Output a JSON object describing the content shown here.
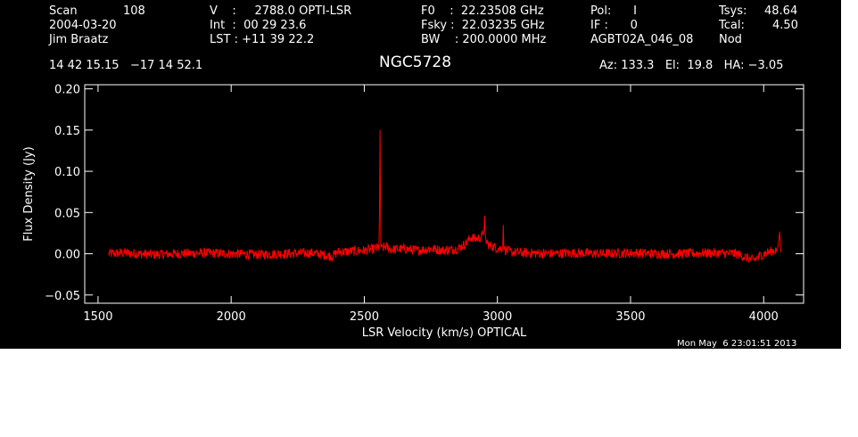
{
  "header": {
    "scan_label": "Scan",
    "scan_value": "108",
    "date": "2004-03-20",
    "observer": "Jim Braatz",
    "v_line": "V    :     2788.0 OPTI-LSR",
    "int_line": "Int  :  00 29 23.6",
    "lst_line": "LST : +11 39 22.2",
    "f0_line": "F0    :  22.23508 GHz",
    "fsky_line": "Fsky :  22.03235 GHz",
    "bw_line": "BW    : 200.0000 MHz",
    "pol_line": "Pol:      I",
    "if_line": "IF :      0",
    "project": "AGBT02A_046_08",
    "tsys_label": "Tsys:",
    "tsys_value": "48.64",
    "tcal_label": "Tcal:",
    "tcal_value": "4.50",
    "mode": "Nod",
    "coords": "14 42 15.15   −17 14 52.1",
    "source": "NGC5728",
    "az_el_ha": "Az: 133.3   El:  19.8   HA: −3.05"
  },
  "timestamp": "Mon May  6 23:01:51 2013",
  "colors": {
    "background": "#000000",
    "axes": "#ffffff",
    "trace": "#ff0000"
  },
  "chart_data": {
    "type": "line",
    "title": "NGC5728",
    "xlabel": "LSR Velocity (km/s) OPTICAL",
    "ylabel": "Flux Density (Jy)",
    "xlim": [
      1450,
      4150
    ],
    "ylim": [
      -0.06,
      0.205
    ],
    "x_ticks": [
      1500,
      2000,
      2500,
      3000,
      3500,
      4000
    ],
    "x_tick_labels": [
      "1500",
      "2000",
      "2500",
      "3000",
      "3500",
      "4000"
    ],
    "y_ticks": [
      -0.05,
      0.0,
      0.05,
      0.1,
      0.15,
      0.2
    ],
    "y_tick_labels": [
      "−0.05",
      "0.00",
      "0.05",
      "0.10",
      "0.15",
      "0.20"
    ],
    "grid": false,
    "series": [
      {
        "x": [
          1540,
          1600,
          1700,
          1800,
          1900,
          2000,
          2100,
          2200,
          2300,
          2380,
          2400,
          2450,
          2500,
          2540,
          2555,
          2557,
          2559,
          2562,
          2565,
          2580,
          2600,
          2650,
          2700,
          2750,
          2800,
          2850,
          2880,
          2900,
          2920,
          2940,
          2950,
          2952,
          2954,
          2958,
          2970,
          2990,
          3010,
          3020,
          3022,
          3024,
          3028,
          3050,
          3100,
          3200,
          3300,
          3400,
          3500,
          3600,
          3700,
          3800,
          3900,
          3960,
          4000,
          4030,
          4050,
          4055,
          4060,
          4065
        ],
        "values": [
          0.0,
          0.001,
          -0.001,
          0.0,
          0.001,
          0.0,
          -0.001,
          0.0,
          0.001,
          -0.003,
          0.002,
          0.003,
          0.004,
          0.006,
          0.008,
          0.052,
          0.15,
          0.01,
          0.006,
          0.009,
          0.005,
          0.006,
          0.004,
          0.006,
          0.004,
          0.006,
          0.012,
          0.02,
          0.018,
          0.02,
          0.03,
          0.046,
          0.025,
          0.015,
          0.01,
          0.008,
          0.006,
          0.008,
          0.035,
          0.006,
          0.005,
          0.002,
          0.001,
          0.0,
          0.001,
          0.0,
          0.001,
          0.0,
          0.0,
          0.001,
          0.0,
          -0.008,
          0.0,
          0.003,
          0.005,
          0.01,
          0.027,
          0.002
        ]
      }
    ]
  }
}
